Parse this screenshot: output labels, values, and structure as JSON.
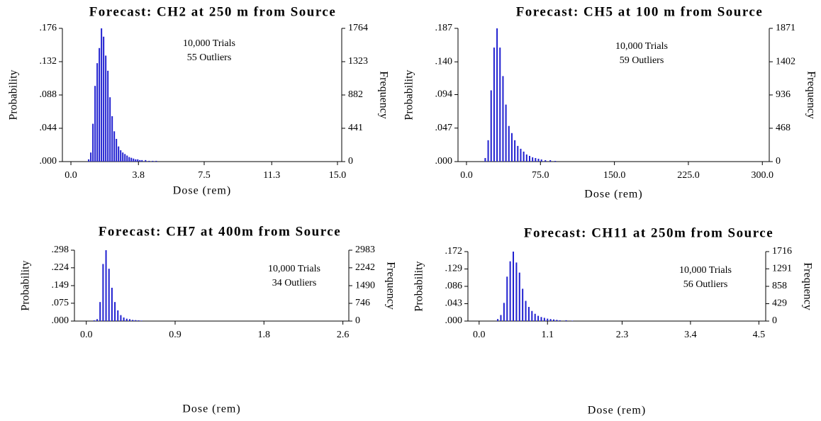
{
  "chart_data": [
    {
      "type": "bar",
      "title": "Forecast: CH2 at 250 m from Source",
      "annotations": [
        "10,000 Trials",
        "55 Outliers"
      ],
      "x_label": "Dose (rem)",
      "y_label": "Probability",
      "y2_label": "Frequency",
      "color": "#2020d0",
      "x": [
        1.0,
        1.12,
        1.24,
        1.36,
        1.48,
        1.6,
        1.72,
        1.84,
        1.96,
        2.08,
        2.2,
        2.32,
        2.44,
        2.56,
        2.68,
        2.8,
        2.92,
        3.04,
        3.16,
        3.28,
        3.4,
        3.52,
        3.64,
        3.76,
        3.88,
        4.0,
        4.2,
        4.4,
        4.6,
        4.8
      ],
      "values": [
        0.003,
        0.012,
        0.05,
        0.1,
        0.13,
        0.15,
        0.176,
        0.165,
        0.14,
        0.12,
        0.085,
        0.06,
        0.04,
        0.03,
        0.02,
        0.015,
        0.012,
        0.01,
        0.008,
        0.006,
        0.005,
        0.004,
        0.003,
        0.003,
        0.002,
        0.002,
        0.002,
        0.001,
        0.001,
        0.001
      ],
      "xlim": [
        -0.48,
        15.24
      ],
      "xticks": [
        {
          "value": 0,
          "label": "0.0"
        },
        3.8,
        7.5,
        11.3,
        {
          "value": 15,
          "label": "15.0"
        }
      ],
      "ylim": [
        0,
        0.176
      ],
      "yticks": [
        {
          "value": 0,
          "label": ".000"
        },
        {
          "value": 0.044,
          "label": ".044"
        },
        {
          "value": 0.088,
          "label": ".088"
        },
        {
          "value": 0.132,
          "label": ".132"
        },
        {
          "value": 0.176,
          "label": ".176"
        }
      ],
      "y2lim": [
        0,
        1764
      ],
      "y2ticks": [
        0,
        441,
        882,
        1323,
        1764
      ]
    },
    {
      "type": "bar",
      "title": "Forecast: CH5 at 100 m from Source",
      "annotations": [
        "10,000 Trials",
        "59 Outliers"
      ],
      "x_label": "Dose (rem)",
      "y_label": "Probability",
      "y2_label": "Frequency",
      "color": "#2020d0",
      "x": [
        19,
        22,
        25,
        28,
        31,
        34,
        37,
        40,
        43,
        46,
        49,
        52,
        55,
        58,
        61,
        64,
        67,
        70,
        73,
        76,
        80,
        85,
        90
      ],
      "values": [
        0.005,
        0.03,
        0.1,
        0.16,
        0.187,
        0.16,
        0.12,
        0.08,
        0.05,
        0.04,
        0.03,
        0.022,
        0.018,
        0.014,
        0.01,
        0.008,
        0.006,
        0.005,
        0.004,
        0.003,
        0.002,
        0.002,
        0.001
      ],
      "xlim": [
        -8.6,
        307
      ],
      "xticks": [
        {
          "value": 0,
          "label": "0.0"
        },
        {
          "value": 75,
          "label": "75.0"
        },
        {
          "value": 150,
          "label": "150.0"
        },
        {
          "value": 225,
          "label": "225.0"
        },
        {
          "value": 300,
          "label": "300.0"
        }
      ],
      "ylim": [
        0,
        0.187
      ],
      "yticks": [
        {
          "value": 0,
          "label": ".000"
        },
        {
          "value": 0.047,
          "label": ".047"
        },
        {
          "value": 0.094,
          "label": ".094"
        },
        {
          "value": 0.14,
          "label": ".140"
        },
        {
          "value": 0.187,
          "label": ".187"
        }
      ],
      "y2lim": [
        0,
        1871
      ],
      "y2ticks": [
        0,
        468,
        936,
        1402,
        1871
      ]
    },
    {
      "type": "bar",
      "title": "Forecast: CH7 at 400m from Source",
      "annotations": [
        "10,000 Trials",
        "34 Outliers"
      ],
      "x_label": "Dose (rem)",
      "y_label": "Probability",
      "y2_label": "Frequency",
      "color": "#2020d0",
      "x": [
        0.08,
        0.11,
        0.14,
        0.17,
        0.2,
        0.23,
        0.26,
        0.29,
        0.32,
        0.35,
        0.38,
        0.41,
        0.44,
        0.47,
        0.5,
        0.53,
        0.56
      ],
      "values": [
        0.003,
        0.008,
        0.08,
        0.24,
        0.298,
        0.22,
        0.14,
        0.08,
        0.045,
        0.025,
        0.015,
        0.01,
        0.008,
        0.005,
        0.004,
        0.003,
        0.002
      ],
      "xlim": [
        -0.12,
        2.66
      ],
      "xticks": [
        {
          "value": 0,
          "label": "0.0"
        },
        0.9,
        1.8,
        2.6
      ],
      "ylim": [
        0,
        0.298
      ],
      "yticks": [
        {
          "value": 0,
          "label": ".000"
        },
        {
          "value": 0.075,
          "label": ".075"
        },
        {
          "value": 0.149,
          "label": ".149"
        },
        {
          "value": 0.224,
          "label": ".224"
        },
        {
          "value": 0.298,
          "label": ".298"
        }
      ],
      "y2lim": [
        0,
        2983
      ],
      "y2ticks": [
        0,
        746,
        1490,
        2242,
        2983
      ]
    },
    {
      "type": "bar",
      "title": "Forecast: CH11 at 250m from Source",
      "annotations": [
        "10,000 Trials",
        "56 Outliers"
      ],
      "x_label": "Dose (rem)",
      "y_label": "Probability",
      "y2_label": "Frequency",
      "color": "#2020d0",
      "x": [
        0.3,
        0.35,
        0.4,
        0.45,
        0.5,
        0.55,
        0.6,
        0.65,
        0.7,
        0.75,
        0.8,
        0.85,
        0.9,
        0.95,
        1.0,
        1.05,
        1.1,
        1.15,
        1.2,
        1.25,
        1.3,
        1.4,
        1.5
      ],
      "values": [
        0.005,
        0.015,
        0.045,
        0.11,
        0.148,
        0.172,
        0.145,
        0.12,
        0.08,
        0.05,
        0.035,
        0.025,
        0.018,
        0.013,
        0.01,
        0.008,
        0.006,
        0.005,
        0.004,
        0.003,
        0.002,
        0.002,
        0.001
      ],
      "xlim": [
        -0.18,
        4.61
      ],
      "xticks": [
        {
          "value": 0,
          "label": "0.0"
        },
        1.1,
        2.3,
        3.4,
        4.5
      ],
      "ylim": [
        0,
        0.172
      ],
      "yticks": [
        {
          "value": 0,
          "label": ".000"
        },
        {
          "value": 0.043,
          "label": ".043"
        },
        {
          "value": 0.086,
          "label": ".086"
        },
        {
          "value": 0.129,
          "label": ".129"
        },
        {
          "value": 0.172,
          "label": ".172"
        }
      ],
      "y2lim": [
        0,
        1716
      ],
      "y2ticks": [
        0,
        429,
        858,
        1291,
        1716
      ]
    }
  ]
}
